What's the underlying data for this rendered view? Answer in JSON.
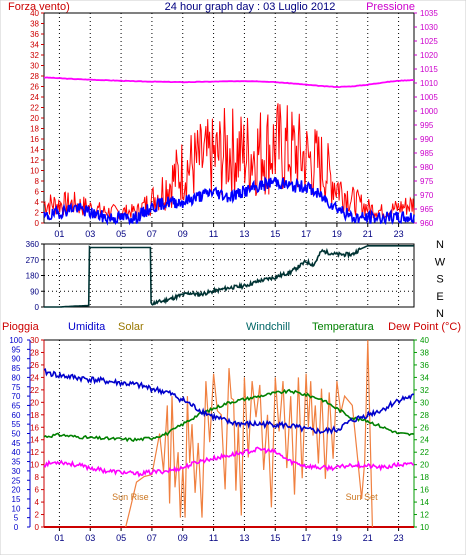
{
  "chart_data": [
    {
      "type": "line",
      "title": "24 hour graph day : 03 Luglio 2012",
      "left_axis_label": "Forza vento)",
      "right_axis_label": "Pressione",
      "left_ticks": [
        0,
        2,
        4,
        6,
        8,
        10,
        12,
        14,
        16,
        18,
        20,
        22,
        24,
        26,
        28,
        30,
        32,
        34,
        36,
        38,
        40
      ],
      "left_ylim": [
        0,
        40
      ],
      "right_ticks": [
        960,
        965,
        970,
        975,
        980,
        985,
        990,
        995,
        1000,
        1005,
        1010,
        1015,
        1020,
        1025,
        1030,
        1035
      ],
      "right_ylim": [
        960,
        1035
      ],
      "x_ticks": [
        "01",
        "03",
        "05",
        "07",
        "09",
        "11",
        "13",
        "15",
        "17",
        "19",
        "21",
        "23"
      ],
      "x_hours": [
        1,
        3,
        5,
        7,
        9,
        11,
        13,
        15,
        17,
        19,
        21,
        23
      ],
      "xlim": [
        0,
        24
      ],
      "colors": {
        "gust": "#ff0000",
        "wind": "#0000ff",
        "pressure": "#ff00ff",
        "left_axis": "#cc0000",
        "right_axis": "#cc00cc"
      },
      "series": [
        {
          "key": "pressure",
          "x": [
            0,
            1,
            2,
            3,
            4,
            5,
            6,
            7,
            8,
            9,
            10,
            11,
            12,
            13,
            14,
            15,
            16,
            17,
            18,
            19,
            20,
            21,
            22,
            23,
            24
          ],
          "values": [
            1012,
            1011.7,
            1011.4,
            1011.2,
            1011,
            1010.8,
            1010.6,
            1010.5,
            1010.4,
            1010.3,
            1010.4,
            1010.5,
            1010.6,
            1010.7,
            1010.6,
            1010.3,
            1009.9,
            1009.4,
            1008.9,
            1008.6,
            1008.8,
            1009.4,
            1010.2,
            1010.8,
            1011.1
          ]
        },
        {
          "key": "wind_gust",
          "x": [
            0,
            1,
            2,
            3,
            4,
            5,
            6,
            7,
            8,
            9,
            10,
            11,
            12,
            13,
            14,
            15,
            16,
            17,
            18,
            19,
            20,
            21,
            22,
            23,
            24
          ],
          "values": [
            5,
            5,
            5,
            4,
            3,
            3,
            3,
            6,
            10,
            14,
            16,
            17,
            19,
            18,
            19,
            20,
            19,
            17,
            15,
            10,
            6,
            4,
            3,
            4,
            5
          ]
        },
        {
          "key": "wind_avg",
          "x": [
            0,
            1,
            2,
            3,
            4,
            5,
            6,
            7,
            8,
            9,
            10,
            11,
            12,
            13,
            14,
            15,
            16,
            17,
            18,
            19,
            20,
            21,
            22,
            23,
            24
          ],
          "values": [
            1,
            2,
            3,
            2,
            1,
            1,
            1,
            3,
            4,
            4,
            5,
            6,
            5,
            6,
            7,
            8,
            7,
            7,
            5,
            3,
            1,
            1,
            1,
            1,
            1
          ]
        }
      ]
    },
    {
      "type": "line",
      "left_ticks": [
        0,
        90,
        180,
        270,
        360
      ],
      "ylim": [
        0,
        360
      ],
      "compass": [
        "N",
        "W",
        "S",
        "E",
        "N"
      ],
      "colors": {
        "direction": "#003333"
      },
      "series": [
        {
          "key": "wind_dir",
          "x": [
            0,
            1,
            2,
            2.9,
            2.95,
            6.9,
            6.95,
            7,
            8,
            9,
            9.5,
            10,
            11,
            12,
            13,
            14,
            15,
            16,
            17,
            17.5,
            18,
            19,
            20,
            20.5,
            21,
            22,
            23,
            24
          ],
          "values": [
            0,
            0,
            5,
            8,
            340,
            340,
            20,
            20,
            40,
            70,
            80,
            70,
            90,
            110,
            120,
            150,
            170,
            200,
            260,
            240,
            320,
            300,
            300,
            330,
            350,
            350,
            350,
            350
          ]
        }
      ]
    },
    {
      "type": "line",
      "labels": {
        "rain": "Pioggia",
        "humidity": "Umidita",
        "solar": "Solar",
        "windchill": "Windchill",
        "temperature": "Temperatura",
        "dewpoint": "Dew Point (°C)"
      },
      "humidity_ticks": [
        0,
        5,
        10,
        15,
        20,
        25,
        30,
        35,
        40,
        45,
        50,
        55,
        60,
        65,
        70,
        75,
        80,
        85,
        90,
        95,
        100
      ],
      "rain_ticks": [
        0,
        2,
        4,
        6,
        8,
        10,
        12,
        14,
        16,
        18,
        20,
        22,
        24,
        26,
        28,
        30
      ],
      "temp_ticks": [
        10,
        12,
        14,
        16,
        18,
        20,
        22,
        24,
        26,
        28,
        30,
        32,
        34,
        36,
        38,
        40
      ],
      "humidity_ylim": [
        0,
        100
      ],
      "rain_ylim": [
        0,
        30
      ],
      "temp_ylim": [
        10,
        40
      ],
      "annotations": [
        {
          "text": "Sun Rise",
          "x": 5.6
        },
        {
          "text": "Sun Set",
          "x": 20.6
        }
      ],
      "colors": {
        "humidity": "#0000cc",
        "solar": "#f08040",
        "windchill": "#008080",
        "temperature": "#008000",
        "dewpoint": "#ff00ff",
        "rain": "#cc0000",
        "rain_axis": "#cc0000",
        "humidity_axis": "#0000cc",
        "temp_axis": "#009900"
      },
      "series": [
        {
          "key": "humidity",
          "x": [
            0,
            1,
            2,
            3,
            4,
            5,
            6,
            7,
            8,
            9,
            10,
            11,
            12,
            13,
            14,
            15,
            16,
            17,
            18,
            19,
            20,
            21,
            22,
            23,
            24
          ],
          "values": [
            83,
            81,
            80,
            79,
            78,
            77,
            76,
            74,
            72,
            68,
            63,
            59,
            56,
            55,
            55,
            55,
            54,
            52,
            51,
            52,
            57,
            60,
            63,
            68,
            70
          ]
        },
        {
          "key": "temperature",
          "x": [
            0,
            1,
            2,
            3,
            4,
            5,
            6,
            7,
            8,
            9,
            10,
            11,
            12,
            13,
            14,
            15,
            16,
            17,
            18,
            19,
            20,
            21,
            22,
            23,
            24
          ],
          "values": [
            24.5,
            24.8,
            24.5,
            24.3,
            24.2,
            24.1,
            24,
            24.3,
            25,
            26.5,
            28,
            29,
            30,
            30.5,
            31,
            31.5,
            31.8,
            31.2,
            30.5,
            29,
            27.5,
            27,
            26,
            25,
            24.8
          ]
        },
        {
          "key": "dewpoint",
          "x": [
            0,
            1,
            2,
            3,
            4,
            5,
            6,
            7,
            8,
            9,
            10,
            11,
            12,
            13,
            14,
            15,
            16,
            17,
            18,
            19,
            20,
            21,
            22,
            23,
            24
          ],
          "values": [
            20,
            20.5,
            20,
            19.5,
            19,
            18.8,
            18.5,
            18.8,
            19,
            19.5,
            20.5,
            21,
            21.5,
            22,
            22.5,
            22,
            20.5,
            19.8,
            19.5,
            19.5,
            20,
            19.8,
            19.5,
            20,
            20
          ]
        },
        {
          "key": "solar",
          "x": [
            5.3,
            5.6,
            6,
            6.5,
            7,
            7.5,
            8,
            8.3,
            8.7,
            9,
            9.3,
            9.6,
            10,
            10.5,
            11,
            11.5,
            12,
            12.3,
            12.6,
            13,
            13.5,
            14,
            14.5,
            15,
            15.5,
            16,
            16.5,
            17,
            17.3,
            17.6,
            18,
            18.5,
            19,
            19.5,
            20,
            20.3,
            20.6,
            20.8,
            21,
            21.3
          ],
          "values": [
            0,
            10,
            24,
            27,
            28,
            50,
            65,
            70,
            40,
            32,
            70,
            55,
            45,
            78,
            82,
            60,
            85,
            68,
            55,
            80,
            78,
            76,
            60,
            80,
            78,
            70,
            80,
            82,
            78,
            65,
            74,
            72,
            78,
            70,
            65,
            40,
            15,
            35,
            100,
            0
          ]
        },
        {
          "key": "rain",
          "x": [
            0,
            24
          ],
          "values": [
            0,
            0
          ]
        }
      ]
    }
  ]
}
